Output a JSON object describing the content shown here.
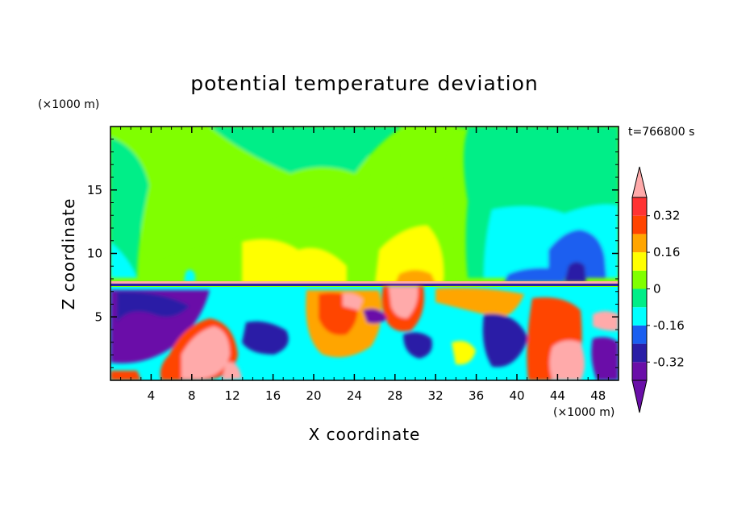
{
  "chart_data": {
    "type": "heatmap",
    "title": "potential temperature deviation",
    "xlabel": "X coordinate",
    "ylabel": "Z coordinate",
    "x_unit": "(×1000 m)",
    "y_unit": "(×1000 m)",
    "time_label": "t=766800 s",
    "xlim": [
      0,
      50
    ],
    "ylim": [
      0,
      20
    ],
    "x_ticks": [
      4,
      8,
      12,
      16,
      20,
      24,
      28,
      32,
      36,
      40,
      44,
      48
    ],
    "y_ticks": [
      5,
      10,
      15
    ],
    "colorbar": {
      "levels": [
        -0.4,
        -0.32,
        -0.24,
        -0.16,
        -0.08,
        0,
        0.08,
        0.16,
        0.24,
        0.32,
        0.4
      ],
      "tick_labels": [
        "0.32",
        "0.16",
        "0",
        "-0.16",
        "-0.32"
      ],
      "tick_values": [
        0.32,
        0.16,
        0,
        -0.16,
        -0.32
      ],
      "colors": [
        "#6a0fa8",
        "#2a1ea6",
        "#1a5ff0",
        "#00ffff",
        "#00ee88",
        "#80ff00",
        "#ffff00",
        "#ffa500",
        "#ff4400",
        "#ff3333",
        "#ffaaaa"
      ],
      "extend": "both"
    }
  }
}
